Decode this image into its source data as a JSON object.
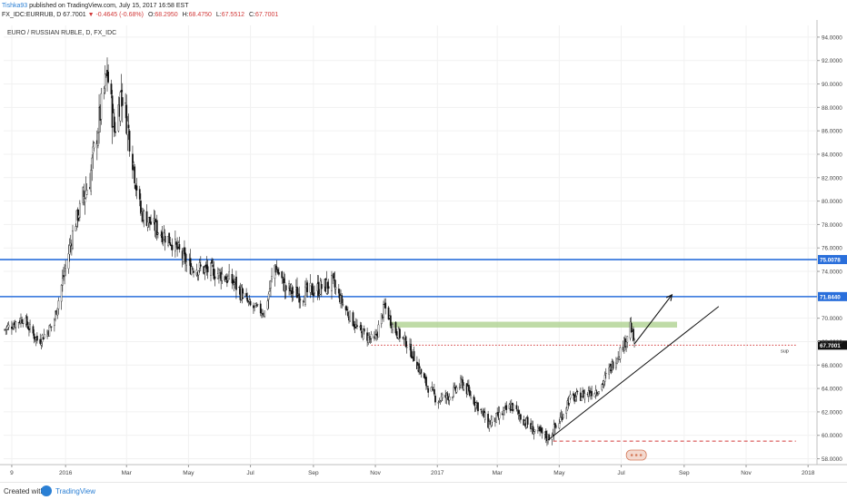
{
  "header": {
    "author": "Tishka93",
    "published": "published on TradingView.com, July 15, 2017 16:58 EST",
    "symbol_line": "FX_IDC:EURRUB, D",
    "last": "67.7001",
    "change_arrow": "▼",
    "change": "-0.4645 (-0.68%)",
    "o": "68.2950",
    "h": "68.4750",
    "l": "67.5512",
    "c": "67.7001"
  },
  "chart_title": "EURO / RUSSIAN RUBLE, D, FX_IDC",
  "footer": {
    "created_with": "Created with",
    "brand": "TradingView"
  },
  "chart_data": {
    "type": "candlestick",
    "y_ticks": [
      "58.0000",
      "60.0000",
      "62.0000",
      "64.0000",
      "66.0000",
      "68.0000",
      "70.0000",
      "74.0000",
      "76.0000",
      "78.0000",
      "80.0000",
      "82.0000",
      "84.0000",
      "86.0000",
      "88.0000",
      "90.0000",
      "92.0000",
      "94.0000"
    ],
    "ylim": [
      57.5,
      95
    ],
    "x_ticks": [
      "9",
      "2016",
      "Mar",
      "May",
      "Jul",
      "Sep",
      "Nov",
      "2017",
      "Mar",
      "May",
      "Jul",
      "Sep",
      "Nov",
      "2018"
    ],
    "price_points": [
      [
        "2015-11-01",
        69.0
      ],
      [
        "2015-11-20",
        70.0
      ],
      [
        "2015-12-05",
        68.0
      ],
      [
        "2015-12-20",
        69.5
      ],
      [
        "2015-12-31",
        74.0
      ],
      [
        "2016-01-10",
        78.0
      ],
      [
        "2016-01-25",
        82.0
      ],
      [
        "2016-02-05",
        88.0
      ],
      [
        "2016-02-11",
        91.0
      ],
      [
        "2016-02-18",
        86.0
      ],
      [
        "2016-02-25",
        89.5
      ],
      [
        "2016-03-05",
        85.0
      ],
      [
        "2016-03-15",
        79.0
      ],
      [
        "2016-04-01",
        77.5
      ],
      [
        "2016-04-15",
        76.5
      ],
      [
        "2016-05-01",
        74.5
      ],
      [
        "2016-05-15",
        74.2
      ],
      [
        "2016-06-01",
        73.8
      ],
      [
        "2016-06-15",
        73.0
      ],
      [
        "2016-07-01",
        71.0
      ],
      [
        "2016-07-15",
        70.5
      ],
      [
        "2016-07-25",
        74.5
      ],
      [
        "2016-08-05",
        72.5
      ],
      [
        "2016-08-20",
        72.0
      ],
      [
        "2016-09-05",
        72.5
      ],
      [
        "2016-09-20",
        73.0
      ],
      [
        "2016-10-01",
        71.0
      ],
      [
        "2016-10-15",
        69.0
      ],
      [
        "2016-10-31",
        68.0
      ],
      [
        "2016-11-10",
        71.0
      ],
      [
        "2016-11-20",
        69.0
      ],
      [
        "2016-12-01",
        68.0
      ],
      [
        "2016-12-10",
        66.5
      ],
      [
        "2016-12-20",
        64.5
      ],
      [
        "2017-01-01",
        63.0
      ],
      [
        "2017-01-15",
        63.5
      ],
      [
        "2017-01-25",
        64.5
      ],
      [
        "2017-02-10",
        62.5
      ],
      [
        "2017-02-20",
        61.0
      ],
      [
        "2017-03-01",
        61.5
      ],
      [
        "2017-03-15",
        62.5
      ],
      [
        "2017-03-25",
        61.5
      ],
      [
        "2017-04-05",
        60.5
      ],
      [
        "2017-04-20",
        59.8
      ],
      [
        "2017-04-30",
        61.0
      ],
      [
        "2017-05-10",
        63.0
      ],
      [
        "2017-05-25",
        63.5
      ],
      [
        "2017-06-10",
        64.0
      ],
      [
        "2017-06-25",
        66.5
      ],
      [
        "2017-07-05",
        68.0
      ],
      [
        "2017-07-10",
        69.5
      ],
      [
        "2017-07-14",
        67.7
      ]
    ],
    "horizontal_levels": [
      {
        "value": 75.0078,
        "label": "75.0078",
        "color": "#2a6fdb"
      },
      {
        "value": 71.844,
        "label": "71.8440",
        "color": "#2a6fdb"
      }
    ],
    "last_price": {
      "value": 67.7001,
      "label": "67.7001"
    },
    "support_level": {
      "value": 67.7,
      "label": "sup",
      "color": "#d23a3a"
    },
    "lower_dashed_level": {
      "value": 59.5,
      "color": "#d23a3a"
    },
    "green_zone": {
      "from": 69.2,
      "to": 69.7,
      "start": "2016-11-15",
      "end": "2017-08-25",
      "color": "#a9cf8a"
    },
    "trendline": {
      "start": [
        "2017-04-20",
        59.6
      ],
      "end": [
        "2017-10-05",
        71.0
      ]
    },
    "projection_arrow": {
      "start": [
        "2017-07-14",
        67.8
      ],
      "end": [
        "2017-08-20",
        72.0
      ]
    }
  }
}
